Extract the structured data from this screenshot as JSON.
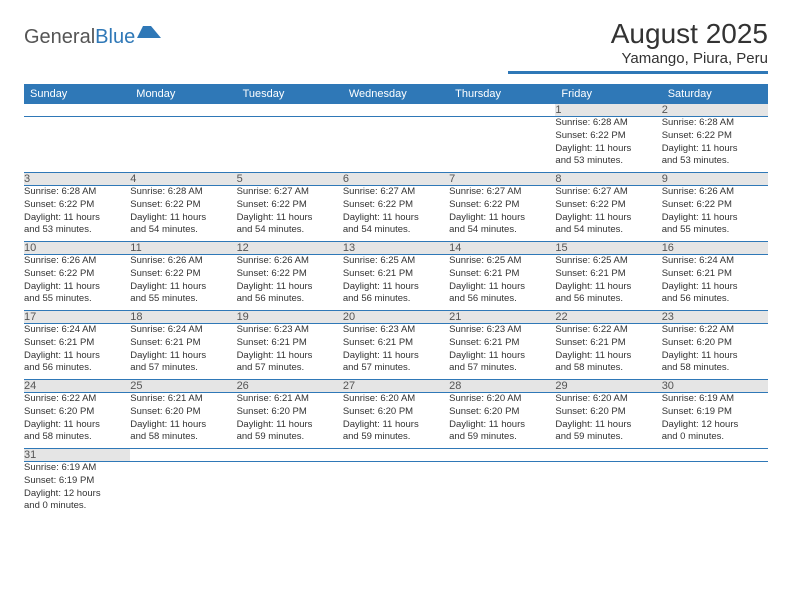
{
  "logo": {
    "text1": "General",
    "text2": "Blue"
  },
  "title": {
    "month": "August 2025",
    "location": "Yamango, Piura, Peru"
  },
  "colors": {
    "accent": "#2f78b7",
    "header_bg": "#2f78b7",
    "daynum_bg": "#e5e5e5"
  },
  "day_headers": [
    "Sunday",
    "Monday",
    "Tuesday",
    "Wednesday",
    "Thursday",
    "Friday",
    "Saturday"
  ],
  "weeks": [
    [
      null,
      null,
      null,
      null,
      null,
      {
        "n": "1",
        "sr": "Sunrise: 6:28 AM",
        "ss": "Sunset: 6:22 PM",
        "d1": "Daylight: 11 hours",
        "d2": "and 53 minutes."
      },
      {
        "n": "2",
        "sr": "Sunrise: 6:28 AM",
        "ss": "Sunset: 6:22 PM",
        "d1": "Daylight: 11 hours",
        "d2": "and 53 minutes."
      }
    ],
    [
      {
        "n": "3",
        "sr": "Sunrise: 6:28 AM",
        "ss": "Sunset: 6:22 PM",
        "d1": "Daylight: 11 hours",
        "d2": "and 53 minutes."
      },
      {
        "n": "4",
        "sr": "Sunrise: 6:28 AM",
        "ss": "Sunset: 6:22 PM",
        "d1": "Daylight: 11 hours",
        "d2": "and 54 minutes."
      },
      {
        "n": "5",
        "sr": "Sunrise: 6:27 AM",
        "ss": "Sunset: 6:22 PM",
        "d1": "Daylight: 11 hours",
        "d2": "and 54 minutes."
      },
      {
        "n": "6",
        "sr": "Sunrise: 6:27 AM",
        "ss": "Sunset: 6:22 PM",
        "d1": "Daylight: 11 hours",
        "d2": "and 54 minutes."
      },
      {
        "n": "7",
        "sr": "Sunrise: 6:27 AM",
        "ss": "Sunset: 6:22 PM",
        "d1": "Daylight: 11 hours",
        "d2": "and 54 minutes."
      },
      {
        "n": "8",
        "sr": "Sunrise: 6:27 AM",
        "ss": "Sunset: 6:22 PM",
        "d1": "Daylight: 11 hours",
        "d2": "and 54 minutes."
      },
      {
        "n": "9",
        "sr": "Sunrise: 6:26 AM",
        "ss": "Sunset: 6:22 PM",
        "d1": "Daylight: 11 hours",
        "d2": "and 55 minutes."
      }
    ],
    [
      {
        "n": "10",
        "sr": "Sunrise: 6:26 AM",
        "ss": "Sunset: 6:22 PM",
        "d1": "Daylight: 11 hours",
        "d2": "and 55 minutes."
      },
      {
        "n": "11",
        "sr": "Sunrise: 6:26 AM",
        "ss": "Sunset: 6:22 PM",
        "d1": "Daylight: 11 hours",
        "d2": "and 55 minutes."
      },
      {
        "n": "12",
        "sr": "Sunrise: 6:26 AM",
        "ss": "Sunset: 6:22 PM",
        "d1": "Daylight: 11 hours",
        "d2": "and 56 minutes."
      },
      {
        "n": "13",
        "sr": "Sunrise: 6:25 AM",
        "ss": "Sunset: 6:21 PM",
        "d1": "Daylight: 11 hours",
        "d2": "and 56 minutes."
      },
      {
        "n": "14",
        "sr": "Sunrise: 6:25 AM",
        "ss": "Sunset: 6:21 PM",
        "d1": "Daylight: 11 hours",
        "d2": "and 56 minutes."
      },
      {
        "n": "15",
        "sr": "Sunrise: 6:25 AM",
        "ss": "Sunset: 6:21 PM",
        "d1": "Daylight: 11 hours",
        "d2": "and 56 minutes."
      },
      {
        "n": "16",
        "sr": "Sunrise: 6:24 AM",
        "ss": "Sunset: 6:21 PM",
        "d1": "Daylight: 11 hours",
        "d2": "and 56 minutes."
      }
    ],
    [
      {
        "n": "17",
        "sr": "Sunrise: 6:24 AM",
        "ss": "Sunset: 6:21 PM",
        "d1": "Daylight: 11 hours",
        "d2": "and 56 minutes."
      },
      {
        "n": "18",
        "sr": "Sunrise: 6:24 AM",
        "ss": "Sunset: 6:21 PM",
        "d1": "Daylight: 11 hours",
        "d2": "and 57 minutes."
      },
      {
        "n": "19",
        "sr": "Sunrise: 6:23 AM",
        "ss": "Sunset: 6:21 PM",
        "d1": "Daylight: 11 hours",
        "d2": "and 57 minutes."
      },
      {
        "n": "20",
        "sr": "Sunrise: 6:23 AM",
        "ss": "Sunset: 6:21 PM",
        "d1": "Daylight: 11 hours",
        "d2": "and 57 minutes."
      },
      {
        "n": "21",
        "sr": "Sunrise: 6:23 AM",
        "ss": "Sunset: 6:21 PM",
        "d1": "Daylight: 11 hours",
        "d2": "and 57 minutes."
      },
      {
        "n": "22",
        "sr": "Sunrise: 6:22 AM",
        "ss": "Sunset: 6:21 PM",
        "d1": "Daylight: 11 hours",
        "d2": "and 58 minutes."
      },
      {
        "n": "23",
        "sr": "Sunrise: 6:22 AM",
        "ss": "Sunset: 6:20 PM",
        "d1": "Daylight: 11 hours",
        "d2": "and 58 minutes."
      }
    ],
    [
      {
        "n": "24",
        "sr": "Sunrise: 6:22 AM",
        "ss": "Sunset: 6:20 PM",
        "d1": "Daylight: 11 hours",
        "d2": "and 58 minutes."
      },
      {
        "n": "25",
        "sr": "Sunrise: 6:21 AM",
        "ss": "Sunset: 6:20 PM",
        "d1": "Daylight: 11 hours",
        "d2": "and 58 minutes."
      },
      {
        "n": "26",
        "sr": "Sunrise: 6:21 AM",
        "ss": "Sunset: 6:20 PM",
        "d1": "Daylight: 11 hours",
        "d2": "and 59 minutes."
      },
      {
        "n": "27",
        "sr": "Sunrise: 6:20 AM",
        "ss": "Sunset: 6:20 PM",
        "d1": "Daylight: 11 hours",
        "d2": "and 59 minutes."
      },
      {
        "n": "28",
        "sr": "Sunrise: 6:20 AM",
        "ss": "Sunset: 6:20 PM",
        "d1": "Daylight: 11 hours",
        "d2": "and 59 minutes."
      },
      {
        "n": "29",
        "sr": "Sunrise: 6:20 AM",
        "ss": "Sunset: 6:20 PM",
        "d1": "Daylight: 11 hours",
        "d2": "and 59 minutes."
      },
      {
        "n": "30",
        "sr": "Sunrise: 6:19 AM",
        "ss": "Sunset: 6:19 PM",
        "d1": "Daylight: 12 hours",
        "d2": "and 0 minutes."
      }
    ],
    [
      {
        "n": "31",
        "sr": "Sunrise: 6:19 AM",
        "ss": "Sunset: 6:19 PM",
        "d1": "Daylight: 12 hours",
        "d2": "and 0 minutes."
      },
      null,
      null,
      null,
      null,
      null,
      null
    ]
  ]
}
